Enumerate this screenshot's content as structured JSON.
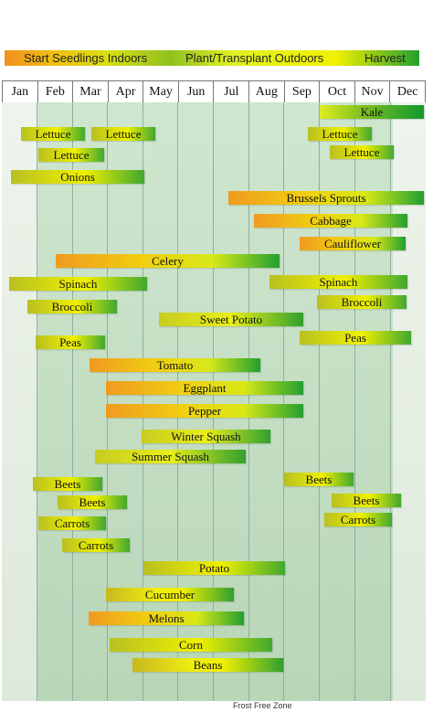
{
  "legend": {
    "start_seedlings": "Start Seedlings Indoors",
    "plant_transplant": "Plant/Transplant Outdoors",
    "harvest": "Harvest"
  },
  "months": [
    "Jan",
    "Feb",
    "Mar",
    "Apr",
    "May",
    "Jun",
    "Jul",
    "Aug",
    "Sep",
    "Oct",
    "Nov",
    "Dec"
  ],
  "frost_label": "Frost Free Zone",
  "crops": {
    "kale": "Kale",
    "lettuce_1": "Lettuce",
    "lettuce_2": "Lettuce",
    "lettuce_3": "Lettuce",
    "lettuce_4": "Lettuce",
    "lettuce_5": "Lettuce",
    "onions": "Onions",
    "brussels_sprouts": "Brussels Sprouts",
    "cabbage": "Cabbage",
    "cauliflower": "Cauliflower",
    "celery": "Celery",
    "spinach_1": "Spinach",
    "spinach_2": "Spinach",
    "broccoli_1": "Broccoli",
    "broccoli_2": "Broccoli",
    "sweet_potato": "Sweet Potato",
    "peas_1": "Peas",
    "peas_2": "Peas",
    "tomato": "Tomato",
    "eggplant": "Eggplant",
    "pepper": "Pepper",
    "winter_squash": "Winter Squash",
    "summer_squash": "Summer Squash",
    "beets_1": "Beets",
    "beets_2": "Beets",
    "beets_3": "Beets",
    "beets_4": "Beets",
    "carrots_1": "Carrots",
    "carrots_2": "Carrots",
    "carrots_3": "Carrots",
    "potato": "Potato",
    "cucumber": "Cucumber",
    "melons": "Melons",
    "corn": "Corn",
    "beans": "Beans"
  },
  "colors": {
    "seedlings": "#f09020",
    "transplant": "#f0f000",
    "harvest": "#22a030",
    "frost_free_zone": "#c4dec4"
  }
}
